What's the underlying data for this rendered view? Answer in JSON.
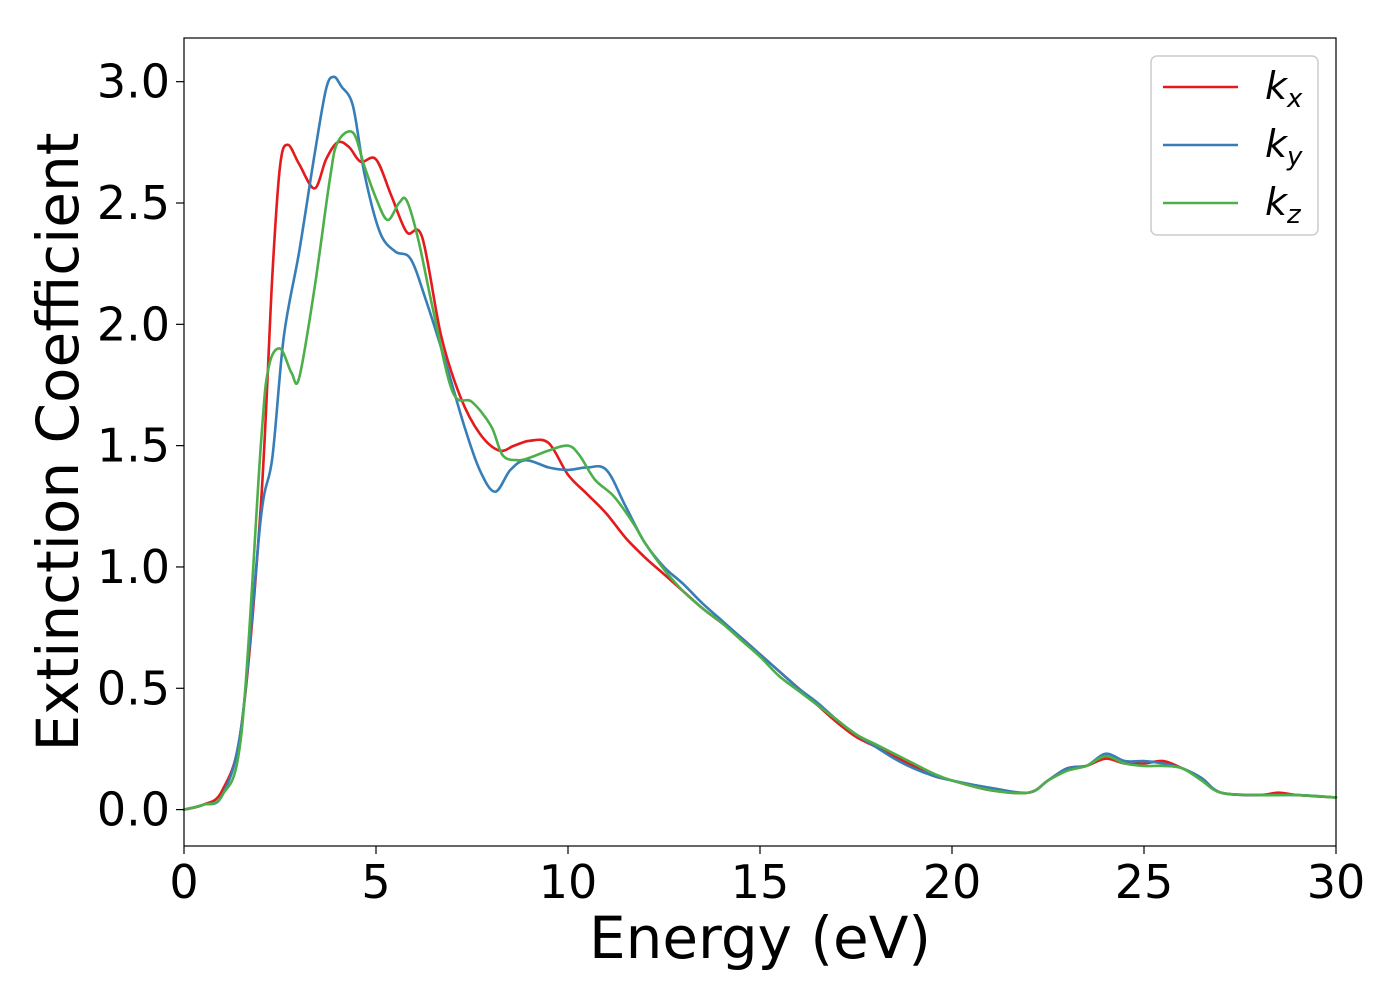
{
  "chart_data": {
    "type": "line",
    "title": "",
    "xlabel": "Energy (eV)",
    "ylabel": "Extinction Coefficient",
    "xlim": [
      0,
      30
    ],
    "ylim": [
      -0.15,
      3.18
    ],
    "xticks": [
      0,
      5,
      10,
      15,
      20,
      25,
      30
    ],
    "xtick_labels": [
      "0",
      "5",
      "10",
      "15",
      "20",
      "25",
      "30"
    ],
    "yticks": [
      0.0,
      0.5,
      1.0,
      1.5,
      2.0,
      2.5,
      3.0
    ],
    "ytick_labels": [
      "0.0",
      "0.5",
      "1.0",
      "1.5",
      "2.0",
      "2.5",
      "3.0"
    ],
    "grid": false,
    "legend_position": "top-right",
    "series": [
      {
        "name": "k",
        "subscript": "x",
        "color": "#e41a1c",
        "points": [
          [
            0,
            0
          ],
          [
            0.5,
            0.02
          ],
          [
            1,
            0.08
          ],
          [
            1.5,
            0.35
          ],
          [
            2,
            1.25
          ],
          [
            2.3,
            2.2
          ],
          [
            2.5,
            2.65
          ],
          [
            2.7,
            2.74
          ],
          [
            3,
            2.66
          ],
          [
            3.4,
            2.56
          ],
          [
            3.7,
            2.68
          ],
          [
            4,
            2.75
          ],
          [
            4.3,
            2.73
          ],
          [
            4.6,
            2.67
          ],
          [
            5,
            2.68
          ],
          [
            5.4,
            2.53
          ],
          [
            5.8,
            2.38
          ],
          [
            6.2,
            2.36
          ],
          [
            6.7,
            1.95
          ],
          [
            7.2,
            1.7
          ],
          [
            7.7,
            1.55
          ],
          [
            8.2,
            1.48
          ],
          [
            8.6,
            1.5
          ],
          [
            9,
            1.52
          ],
          [
            9.5,
            1.51
          ],
          [
            10,
            1.38
          ],
          [
            10.5,
            1.3
          ],
          [
            11,
            1.22
          ],
          [
            11.5,
            1.12
          ],
          [
            12,
            1.04
          ],
          [
            12.5,
            0.97
          ],
          [
            13,
            0.9
          ],
          [
            13.5,
            0.83
          ],
          [
            14,
            0.77
          ],
          [
            14.5,
            0.71
          ],
          [
            15,
            0.64
          ],
          [
            15.5,
            0.57
          ],
          [
            16,
            0.5
          ],
          [
            16.5,
            0.43
          ],
          [
            17,
            0.36
          ],
          [
            17.5,
            0.3
          ],
          [
            18,
            0.26
          ],
          [
            18.5,
            0.22
          ],
          [
            19,
            0.18
          ],
          [
            19.5,
            0.14
          ],
          [
            20,
            0.12
          ],
          [
            21,
            0.08
          ],
          [
            22,
            0.07
          ],
          [
            22.5,
            0.12
          ],
          [
            23,
            0.17
          ],
          [
            23.5,
            0.18
          ],
          [
            24,
            0.21
          ],
          [
            24.5,
            0.19
          ],
          [
            25,
            0.19
          ],
          [
            25.5,
            0.2
          ],
          [
            26,
            0.17
          ],
          [
            26.5,
            0.13
          ],
          [
            27,
            0.07
          ],
          [
            28,
            0.06
          ],
          [
            28.5,
            0.07
          ],
          [
            29,
            0.06
          ],
          [
            30,
            0.05
          ]
        ]
      },
      {
        "name": "k",
        "subscript": "y",
        "color": "#377eb8",
        "points": [
          [
            0,
            0
          ],
          [
            0.5,
            0.02
          ],
          [
            1,
            0.06
          ],
          [
            1.5,
            0.35
          ],
          [
            2,
            1.2
          ],
          [
            2.3,
            1.45
          ],
          [
            2.6,
            1.95
          ],
          [
            3,
            2.3
          ],
          [
            3.4,
            2.7
          ],
          [
            3.7,
            2.97
          ],
          [
            3.9,
            3.02
          ],
          [
            4.1,
            2.98
          ],
          [
            4.4,
            2.9
          ],
          [
            4.7,
            2.62
          ],
          [
            5.1,
            2.38
          ],
          [
            5.5,
            2.3
          ],
          [
            5.9,
            2.27
          ],
          [
            6.3,
            2.1
          ],
          [
            6.8,
            1.85
          ],
          [
            7.3,
            1.58
          ],
          [
            7.7,
            1.4
          ],
          [
            8.1,
            1.31
          ],
          [
            8.5,
            1.4
          ],
          [
            8.9,
            1.44
          ],
          [
            9.5,
            1.41
          ],
          [
            10,
            1.4
          ],
          [
            10.5,
            1.41
          ],
          [
            11,
            1.4
          ],
          [
            11.5,
            1.25
          ],
          [
            12,
            1.1
          ],
          [
            12.5,
            1.0
          ],
          [
            13,
            0.93
          ],
          [
            13.5,
            0.85
          ],
          [
            14,
            0.78
          ],
          [
            14.5,
            0.71
          ],
          [
            15,
            0.64
          ],
          [
            15.5,
            0.57
          ],
          [
            16,
            0.5
          ],
          [
            16.5,
            0.44
          ],
          [
            17,
            0.37
          ],
          [
            17.5,
            0.31
          ],
          [
            18,
            0.26
          ],
          [
            18.5,
            0.21
          ],
          [
            19,
            0.17
          ],
          [
            19.5,
            0.14
          ],
          [
            20,
            0.12
          ],
          [
            21,
            0.09
          ],
          [
            22,
            0.07
          ],
          [
            22.5,
            0.12
          ],
          [
            23,
            0.17
          ],
          [
            23.5,
            0.18
          ],
          [
            24,
            0.23
          ],
          [
            24.5,
            0.2
          ],
          [
            25,
            0.2
          ],
          [
            25.5,
            0.19
          ],
          [
            26,
            0.17
          ],
          [
            26.5,
            0.13
          ],
          [
            27,
            0.07
          ],
          [
            28,
            0.06
          ],
          [
            29,
            0.06
          ],
          [
            30,
            0.05
          ]
        ]
      },
      {
        "name": "k",
        "subscript": "z",
        "color": "#4daf4a",
        "points": [
          [
            0,
            0
          ],
          [
            0.5,
            0.02
          ],
          [
            1,
            0.06
          ],
          [
            1.5,
            0.32
          ],
          [
            2,
            1.5
          ],
          [
            2.2,
            1.82
          ],
          [
            2.5,
            1.9
          ],
          [
            2.8,
            1.8
          ],
          [
            3,
            1.78
          ],
          [
            3.4,
            2.15
          ],
          [
            3.8,
            2.6
          ],
          [
            4,
            2.75
          ],
          [
            4.4,
            2.79
          ],
          [
            4.7,
            2.65
          ],
          [
            5,
            2.52
          ],
          [
            5.3,
            2.43
          ],
          [
            5.6,
            2.5
          ],
          [
            5.8,
            2.51
          ],
          [
            6.1,
            2.35
          ],
          [
            6.5,
            2.05
          ],
          [
            7,
            1.72
          ],
          [
            7.5,
            1.68
          ],
          [
            8,
            1.58
          ],
          [
            8.3,
            1.46
          ],
          [
            8.7,
            1.44
          ],
          [
            9,
            1.45
          ],
          [
            9.5,
            1.48
          ],
          [
            10,
            1.5
          ],
          [
            10.3,
            1.46
          ],
          [
            10.7,
            1.36
          ],
          [
            11.2,
            1.29
          ],
          [
            11.7,
            1.18
          ],
          [
            12,
            1.1
          ],
          [
            12.5,
            0.99
          ],
          [
            13,
            0.9
          ],
          [
            13.5,
            0.83
          ],
          [
            14,
            0.77
          ],
          [
            14.5,
            0.7
          ],
          [
            15,
            0.63
          ],
          [
            15.5,
            0.55
          ],
          [
            16,
            0.49
          ],
          [
            16.5,
            0.43
          ],
          [
            17,
            0.37
          ],
          [
            17.5,
            0.31
          ],
          [
            18,
            0.27
          ],
          [
            18.5,
            0.23
          ],
          [
            19,
            0.19
          ],
          [
            19.5,
            0.15
          ],
          [
            20,
            0.12
          ],
          [
            21,
            0.08
          ],
          [
            22,
            0.07
          ],
          [
            22.5,
            0.12
          ],
          [
            23,
            0.16
          ],
          [
            23.5,
            0.18
          ],
          [
            24,
            0.22
          ],
          [
            24.5,
            0.19
          ],
          [
            25,
            0.18
          ],
          [
            25.5,
            0.18
          ],
          [
            26,
            0.17
          ],
          [
            26.5,
            0.12
          ],
          [
            27,
            0.07
          ],
          [
            28,
            0.06
          ],
          [
            29,
            0.06
          ],
          [
            30,
            0.05
          ]
        ]
      }
    ]
  }
}
